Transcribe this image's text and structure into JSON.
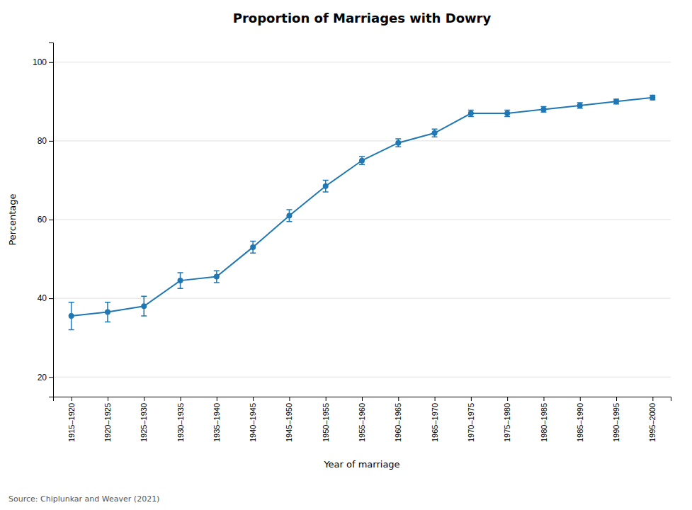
{
  "chart_data": {
    "type": "line",
    "title": "Proportion of Marriages with Dowry",
    "x_label": "Year of marriage",
    "y_label": "Percentage",
    "source": "Source: Chiplunkar and Weaver (2021)",
    "categories": [
      "1915–1920",
      "1920–1925",
      "1925–1930",
      "1930–1935",
      "1935–1940",
      "1940–1945",
      "1945–1950",
      "1950–1955",
      "1955–1960",
      "1960–1965",
      "1965–1970",
      "1970–1975",
      "1975–1980",
      "1980–1985",
      "1985–1990",
      "1990–1995",
      "1995–2000"
    ],
    "values": [
      35.5,
      36.5,
      38.0,
      44.5,
      45.5,
      53.0,
      61.0,
      68.5,
      75.0,
      79.5,
      82.0,
      87.0,
      87.0,
      88.0,
      89.0,
      90.0,
      91.0
    ],
    "yerr": [
      3.5,
      2.5,
      2.5,
      2.0,
      1.5,
      1.5,
      1.5,
      1.5,
      1.0,
      1.0,
      1.0,
      0.8,
      0.8,
      0.7,
      0.7,
      0.6,
      0.6
    ],
    "ylim": [
      15,
      105
    ],
    "yticks": [
      20,
      40,
      60,
      80,
      100
    ],
    "grid": true
  }
}
